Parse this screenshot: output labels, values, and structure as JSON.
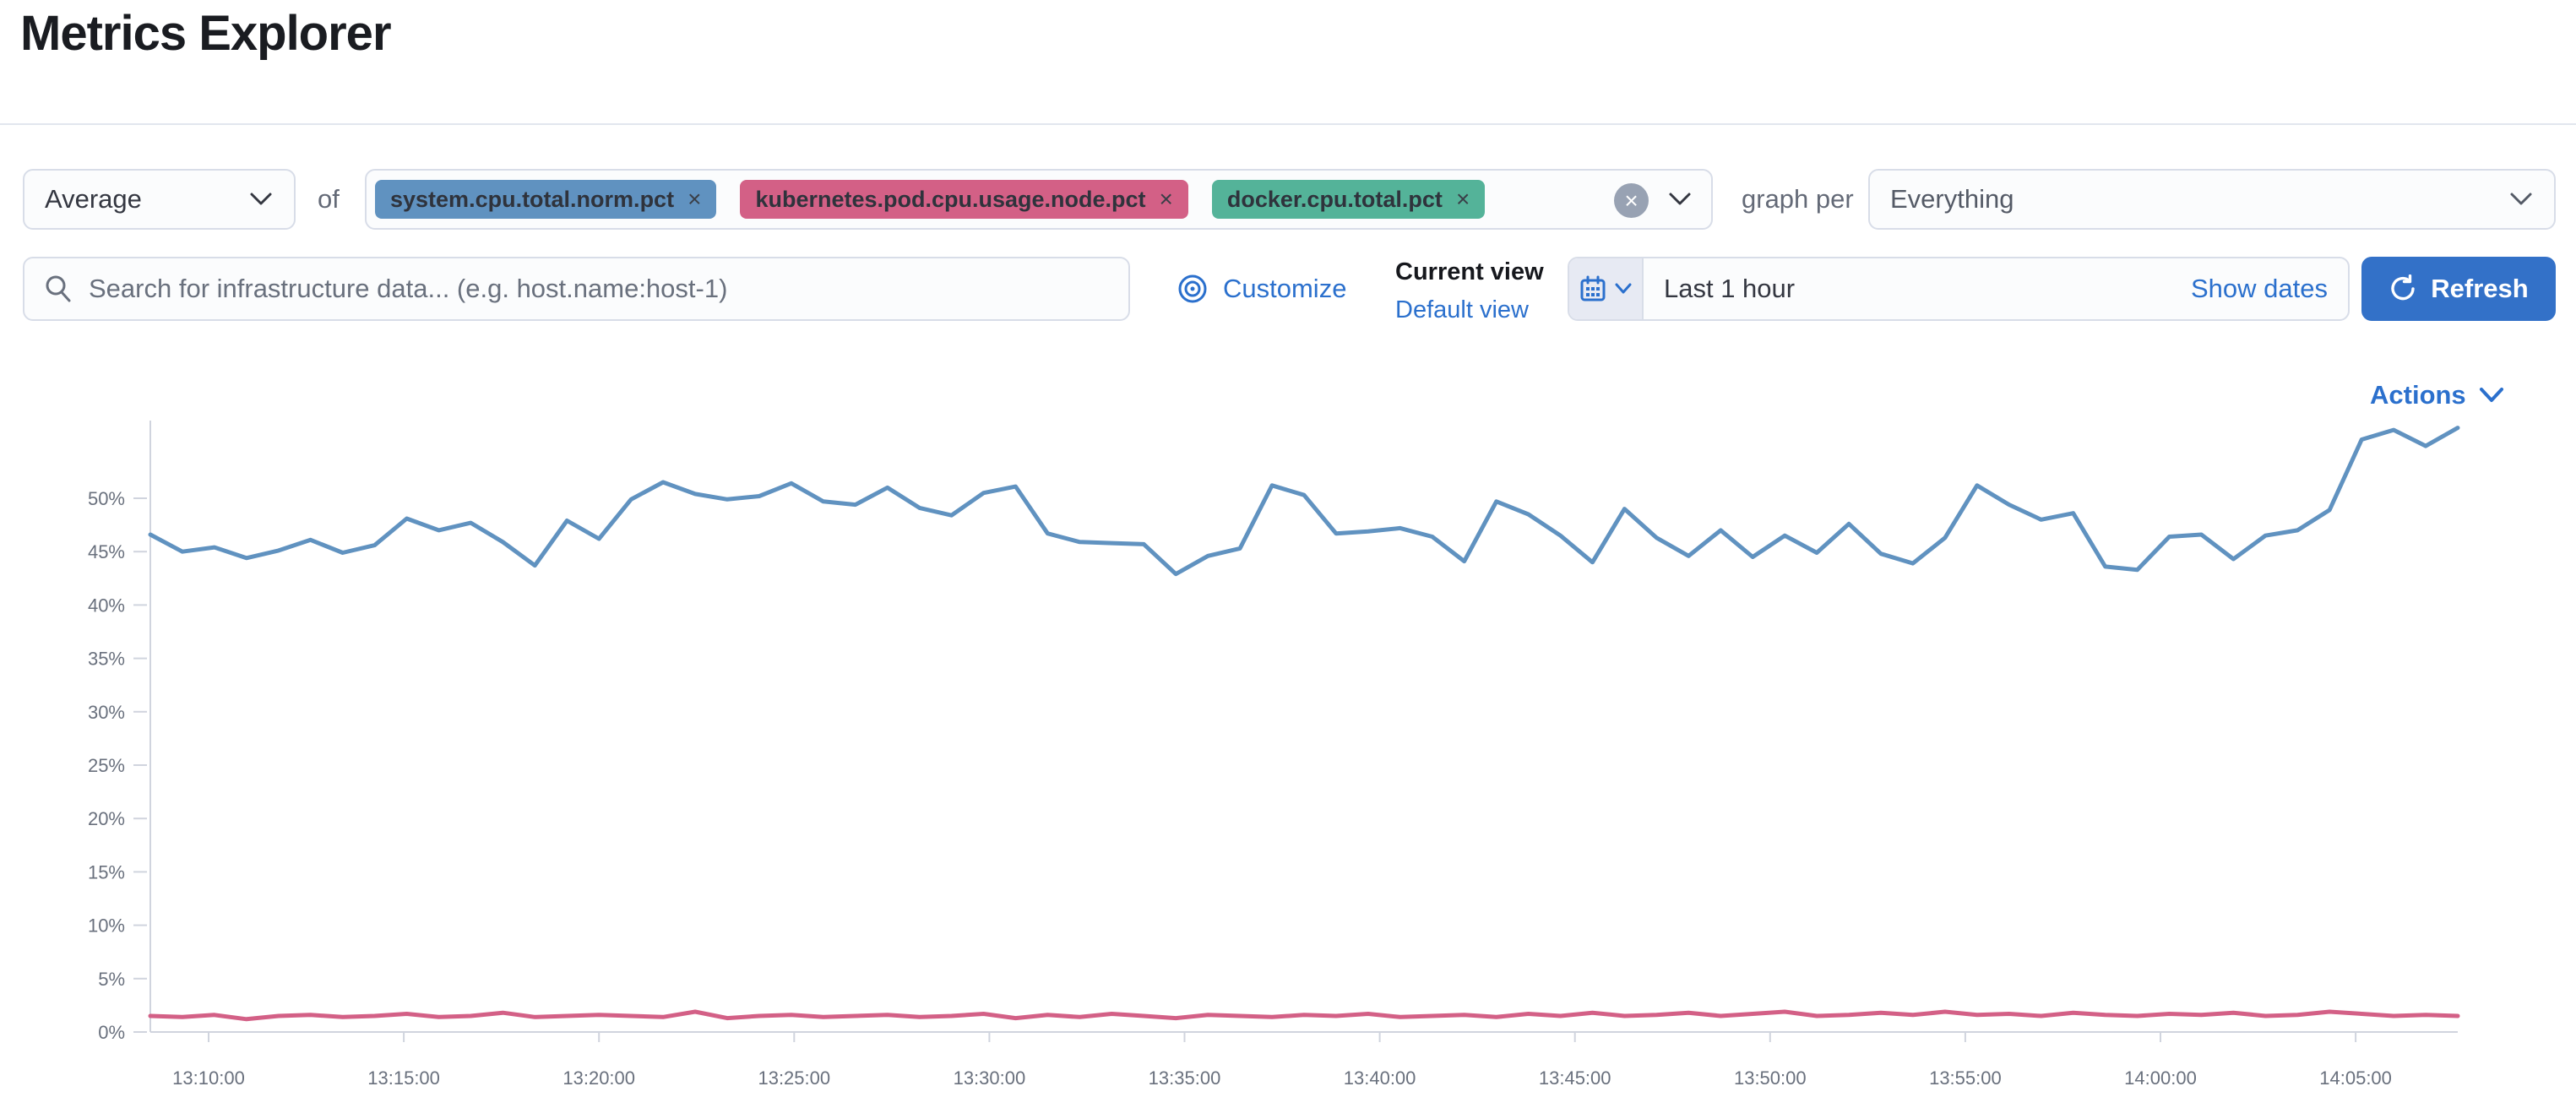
{
  "page": {
    "title": "Metrics Explorer"
  },
  "toolbar": {
    "aggregation_value": "Average",
    "of_label": "of",
    "metrics": [
      {
        "label": "system.cpu.total.norm.pct",
        "color": "#6092C0"
      },
      {
        "label": "kubernetes.pod.cpu.usage.node.pct",
        "color": "#D36086"
      },
      {
        "label": "docker.cpu.total.pct",
        "color": "#54B399"
      }
    ],
    "graph_per_label": "graph per",
    "group_by_value": "Everything"
  },
  "search": {
    "placeholder": "Search for infrastructure data... (e.g. host.name:host-1)"
  },
  "views": {
    "customize_label": "Customize",
    "current_view_label": "Current view",
    "selected_view": "Default view"
  },
  "time": {
    "range_label": "Last 1 hour",
    "show_dates_label": "Show dates",
    "refresh_label": "Refresh"
  },
  "actions_label": "Actions",
  "colors": {
    "link": "#2B70CD",
    "primary_button": "#3371C8",
    "text": "#343741",
    "muted_text": "#69707D",
    "border": "#D8DDE8",
    "axis": "#D0D4DE"
  },
  "chart_data": {
    "type": "line",
    "title": "",
    "xlabel": "",
    "ylabel": "",
    "ylim_pct": [
      0,
      55
    ],
    "grid": false,
    "legend": "none",
    "y_ticks_pct": [
      0,
      5,
      10,
      15,
      20,
      25,
      30,
      35,
      40,
      45,
      50
    ],
    "x_tick_labels": [
      "13:10:00",
      "13:15:00",
      "13:20:00",
      "13:25:00",
      "13:30:00",
      "13:35:00",
      "13:40:00",
      "13:45:00",
      "13:50:00",
      "13:55:00",
      "14:00:00",
      "14:05:00"
    ],
    "x_range": [
      "13:08:30",
      "14:07:40"
    ],
    "series": [
      {
        "name": "system.cpu.total.norm.pct",
        "color": "#6092C0",
        "unit": "%",
        "values": [
          46.6,
          45.0,
          45.4,
          44.4,
          45.1,
          46.1,
          44.9,
          45.6,
          48.1,
          47.0,
          47.7,
          45.9,
          43.7,
          47.9,
          46.2,
          49.9,
          51.5,
          50.4,
          49.9,
          50.2,
          51.4,
          49.7,
          49.4,
          51.0,
          49.1,
          48.4,
          50.5,
          51.1,
          46.7,
          45.9,
          45.8,
          45.7,
          42.9,
          44.6,
          45.3,
          51.2,
          50.3,
          46.7,
          46.9,
          47.2,
          46.4,
          44.1,
          49.7,
          48.5,
          46.5,
          44.0,
          49.0,
          46.3,
          44.6,
          47.0,
          44.5,
          46.5,
          44.9,
          47.6,
          44.8,
          43.9,
          46.3,
          51.2,
          49.4,
          48.0,
          48.6,
          43.6,
          43.3,
          46.4,
          46.6,
          44.3,
          46.5,
          47.0,
          48.9,
          55.5,
          56.4,
          54.9,
          56.6
        ]
      },
      {
        "name": "kubernetes.pod.cpu.usage.node.pct",
        "color": "#D36086",
        "unit": "%",
        "values": [
          1.5,
          1.4,
          1.6,
          1.2,
          1.5,
          1.6,
          1.4,
          1.5,
          1.7,
          1.4,
          1.5,
          1.8,
          1.4,
          1.5,
          1.6,
          1.5,
          1.4,
          1.9,
          1.3,
          1.5,
          1.6,
          1.4,
          1.5,
          1.6,
          1.4,
          1.5,
          1.7,
          1.3,
          1.6,
          1.4,
          1.7,
          1.5,
          1.3,
          1.6,
          1.5,
          1.4,
          1.6,
          1.5,
          1.7,
          1.4,
          1.5,
          1.6,
          1.4,
          1.7,
          1.5,
          1.8,
          1.5,
          1.6,
          1.8,
          1.5,
          1.7,
          1.9,
          1.5,
          1.6,
          1.8,
          1.6,
          1.9,
          1.6,
          1.7,
          1.5,
          1.8,
          1.6,
          1.5,
          1.7,
          1.6,
          1.8,
          1.5,
          1.6,
          1.9,
          1.7,
          1.5,
          1.6,
          1.5
        ]
      }
    ]
  }
}
